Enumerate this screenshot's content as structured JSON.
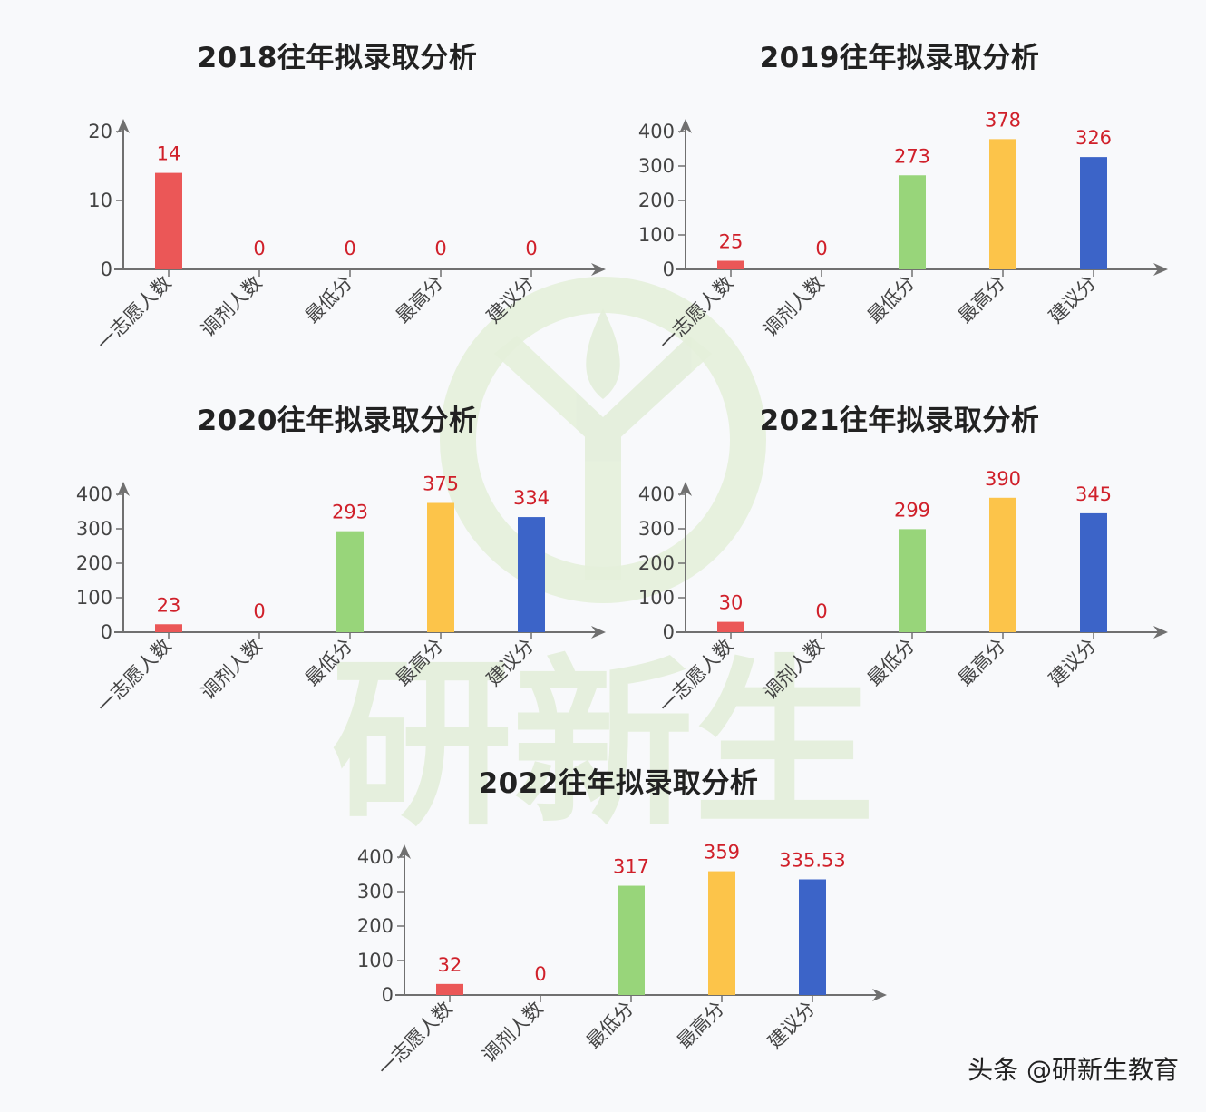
{
  "footer": {
    "source": "头条 @研新生教育"
  },
  "watermark": {
    "text": "研新生"
  },
  "colors": {
    "red": "#eb5757",
    "green": "#98d57a",
    "yellow": "#fcc44a",
    "blue": "#3c64c8",
    "value_label": "#d0202a",
    "axis": "#707070"
  },
  "chart_data": [
    {
      "type": "bar",
      "title": "2018往年拟录取分析",
      "categories": [
        "一志愿人数",
        "调剂人数",
        "最低分",
        "最高分",
        "建议分"
      ],
      "values": [
        14,
        0,
        0,
        0,
        0
      ],
      "value_labels": [
        "14",
        "0",
        "0",
        "0",
        "0"
      ],
      "yticks": [
        0,
        10,
        20
      ],
      "ylim": [
        0,
        20
      ],
      "xlabel": "",
      "ylabel": "",
      "grid": false,
      "legend": null
    },
    {
      "type": "bar",
      "title": "2019往年拟录取分析",
      "categories": [
        "一志愿人数",
        "调剂人数",
        "最低分",
        "最高分",
        "建议分"
      ],
      "values": [
        25,
        0,
        273,
        378,
        326
      ],
      "value_labels": [
        "25",
        "0",
        "273",
        "378",
        "326"
      ],
      "yticks": [
        0,
        100,
        200,
        300,
        400
      ],
      "ylim": [
        0,
        400
      ],
      "xlabel": "",
      "ylabel": "",
      "grid": false,
      "legend": null
    },
    {
      "type": "bar",
      "title": "2020往年拟录取分析",
      "categories": [
        "一志愿人数",
        "调剂人数",
        "最低分",
        "最高分",
        "建议分"
      ],
      "values": [
        23,
        0,
        293,
        375,
        334
      ],
      "value_labels": [
        "23",
        "0",
        "293",
        "375",
        "334"
      ],
      "yticks": [
        0,
        100,
        200,
        300,
        400
      ],
      "ylim": [
        0,
        400
      ],
      "xlabel": "",
      "ylabel": "",
      "grid": false,
      "legend": null
    },
    {
      "type": "bar",
      "title": "2021往年拟录取分析",
      "categories": [
        "一志愿人数",
        "调剂人数",
        "最低分",
        "最高分",
        "建议分"
      ],
      "values": [
        30,
        0,
        299,
        390,
        345
      ],
      "value_labels": [
        "30",
        "0",
        "299",
        "390",
        "345"
      ],
      "yticks": [
        0,
        100,
        200,
        300,
        400
      ],
      "ylim": [
        0,
        400
      ],
      "xlabel": "",
      "ylabel": "",
      "grid": false,
      "legend": null
    },
    {
      "type": "bar",
      "title": "2022往年拟录取分析",
      "categories": [
        "一志愿人数",
        "调剂人数",
        "最低分",
        "最高分",
        "建议分"
      ],
      "values": [
        32,
        0,
        317,
        359,
        335.53
      ],
      "value_labels": [
        "32",
        "0",
        "317",
        "359",
        "335.53"
      ],
      "yticks": [
        0,
        100,
        200,
        300,
        400
      ],
      "ylim": [
        0,
        400
      ],
      "xlabel": "",
      "ylabel": "",
      "grid": false,
      "legend": null
    }
  ]
}
